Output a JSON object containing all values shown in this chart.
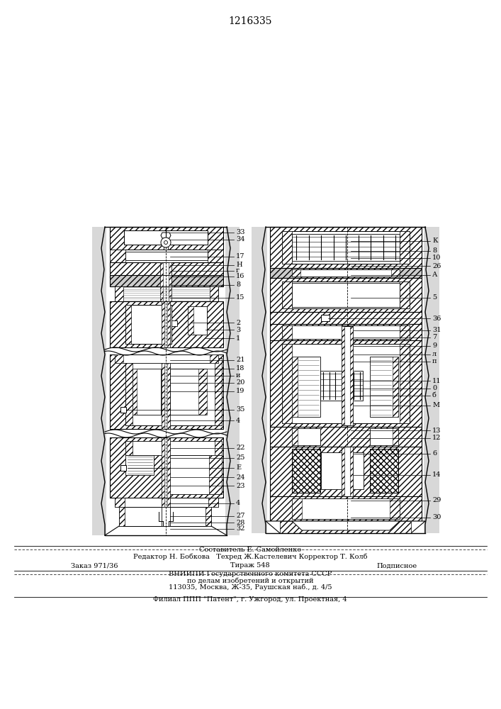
{
  "title": "1216335",
  "bg_color": "#f5f5f0",
  "footer": {
    "line1": "Составитель Е. Самойленко",
    "line2": "Редактор Н. Бобкова   Техред Ж.Кастелевич Корректор Т. Колб",
    "line3": "Заказ 971/36          Тираж 548          Подписное",
    "line4": "ВНИИПИ Государственного комитета СССР",
    "line5": "по делам изобретений и открытий",
    "line6": "113035, Москва, Ж-35, Раушская наб., д. 4/5",
    "line7": "Филиал ППП \"Патент\", г. Ужгород, ул. Проектная, 4"
  },
  "left_labels": [
    [
      330,
      665,
      "33"
    ],
    [
      330,
      655,
      "34"
    ],
    [
      330,
      635,
      "17"
    ],
    [
      330,
      622,
      "Н"
    ],
    [
      330,
      614,
      "г"
    ],
    [
      330,
      606,
      "16"
    ],
    [
      330,
      589,
      "8"
    ],
    [
      330,
      575,
      "15"
    ],
    [
      330,
      540,
      "2"
    ],
    [
      330,
      530,
      "3"
    ],
    [
      330,
      520,
      "1"
    ],
    [
      330,
      480,
      "21"
    ],
    [
      330,
      469,
      "18"
    ],
    [
      330,
      460,
      "и"
    ],
    [
      330,
      450,
      "20"
    ],
    [
      330,
      440,
      "19"
    ],
    [
      330,
      420,
      "35"
    ],
    [
      330,
      408,
      "4"
    ],
    [
      330,
      360,
      "22"
    ],
    [
      330,
      348,
      "25"
    ],
    [
      330,
      335,
      "Е"
    ],
    [
      330,
      323,
      "24"
    ],
    [
      330,
      312,
      "23"
    ],
    [
      330,
      295,
      "4"
    ],
    [
      330,
      278,
      "27"
    ],
    [
      330,
      268,
      "28"
    ],
    [
      330,
      258,
      "32"
    ]
  ],
  "right_labels": [
    [
      618,
      658,
      "К"
    ],
    [
      618,
      644,
      "8"
    ],
    [
      618,
      633,
      "10"
    ],
    [
      618,
      622,
      "26"
    ],
    [
      618,
      608,
      "А"
    ],
    [
      618,
      577,
      "5"
    ],
    [
      618,
      558,
      "36"
    ],
    [
      618,
      535,
      "31"
    ],
    [
      618,
      525,
      "7"
    ],
    [
      618,
      510,
      "9"
    ],
    [
      618,
      499,
      "л"
    ],
    [
      618,
      489,
      "п"
    ],
    [
      618,
      463,
      "11"
    ],
    [
      618,
      452,
      "0"
    ],
    [
      618,
      442,
      "б"
    ],
    [
      618,
      428,
      "М"
    ],
    [
      618,
      393,
      "13"
    ],
    [
      618,
      382,
      "12"
    ],
    [
      618,
      360,
      "6"
    ],
    [
      618,
      330,
      "14"
    ],
    [
      618,
      294,
      "29"
    ],
    [
      618,
      273,
      "30"
    ]
  ]
}
